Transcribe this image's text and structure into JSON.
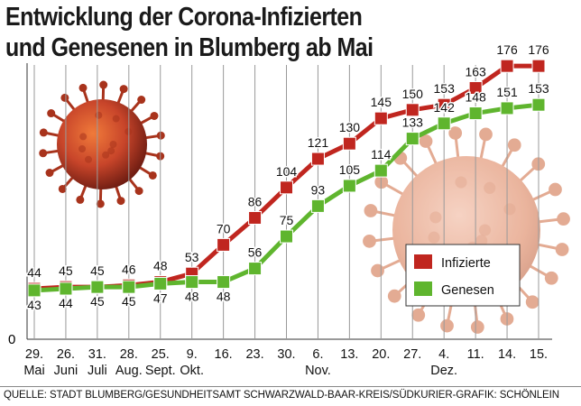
{
  "title_lines": [
    "Entwicklung der Corona-Infizierten",
    "und Genesenen in Blumberg ab Mai"
  ],
  "source": "QUELLE: STADT BLUMBERG/GESUNDHEITSAMT SCHWARZWALD-BAAR-KREIS/SÜDKURIER-GRAFIK: SCHÖNLEIN",
  "chart_data": {
    "type": "line",
    "title": "Entwicklung der Corona-Infizierten und Genesenen in Blumberg ab Mai",
    "ylabel": "",
    "xlabel": "",
    "ylim": [
      0,
      200
    ],
    "y_ticks": [
      "0"
    ],
    "x_labels": [
      "29.",
      "26.",
      "31.",
      "28.",
      "25.",
      "9.",
      "16.",
      "23.",
      "30.",
      "6.",
      "13.",
      "20.",
      "27.",
      "4.",
      "11.",
      "14.",
      "15."
    ],
    "month_labels": [
      {
        "text": "Mai",
        "index": 0
      },
      {
        "text": "Juni",
        "index": 1
      },
      {
        "text": "Juli",
        "index": 2
      },
      {
        "text": "Aug.",
        "index": 3
      },
      {
        "text": "Sept.",
        "index": 4
      },
      {
        "text": "Okt.",
        "index": 5
      },
      {
        "text": "Nov.",
        "index": 9
      },
      {
        "text": "Dez.",
        "index": 13
      }
    ],
    "series": [
      {
        "name": "Infizierte",
        "color": "#c0261f",
        "values": [
          44,
          45,
          45,
          46,
          48,
          53,
          70,
          86,
          104,
          121,
          130,
          145,
          150,
          153,
          163,
          176,
          176
        ]
      },
      {
        "name": "Genesen",
        "color": "#5fb52e",
        "values": [
          43,
          44,
          45,
          45,
          47,
          48,
          48,
          56,
          75,
          93,
          105,
          114,
          133,
          142,
          148,
          151,
          153
        ]
      }
    ],
    "legend_position": "right",
    "grid": "vertical"
  }
}
